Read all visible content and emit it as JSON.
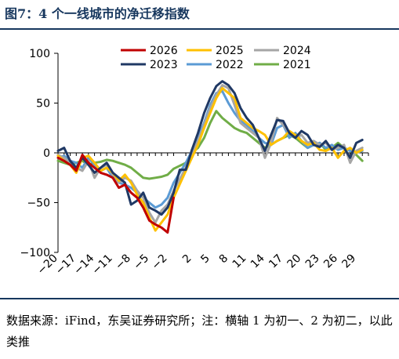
{
  "figure": {
    "title": "图7：4 个一线城市的净迁移指数",
    "source": "数据来源：iFind，东吴证券研究所；注：横轴 1 为初一、2 为初二，以此类推"
  },
  "chart_data": {
    "type": "line",
    "ylim": [
      -100,
      100
    ],
    "yticks": [
      100,
      50,
      0,
      -50,
      -100
    ],
    "xlim": [
      -20,
      31
    ],
    "xticks": [
      -20,
      -17,
      -14,
      -11,
      -8,
      -5,
      -2,
      2,
      5,
      8,
      11,
      14,
      17,
      20,
      23,
      26,
      29
    ],
    "grid": false,
    "legend_position": "top-right",
    "series": [
      {
        "name": "2026",
        "color": "#c00000",
        "x": [
          -20,
          -19,
          -18,
          -17,
          -16,
          -15,
          -14,
          -13,
          -12,
          -11,
          -10,
          -9,
          -8,
          -7,
          -6,
          -5,
          -4,
          -3,
          -2,
          -1
        ],
        "y": [
          -5,
          -8,
          -12,
          -18,
          -2,
          -10,
          -15,
          -20,
          -22,
          -25,
          -35,
          -32,
          -40,
          -45,
          -55,
          -68,
          -72,
          -75,
          -80,
          -45
        ]
      },
      {
        "name": "2025",
        "color": "#ffc000",
        "x": [
          -20,
          -19,
          -18,
          -17,
          -16,
          -15,
          -14,
          -13,
          -12,
          -11,
          -10,
          -9,
          -8,
          -7,
          -6,
          -5,
          -4,
          -3,
          -2,
          -1,
          1,
          2,
          3,
          4,
          5,
          6,
          7,
          8,
          9,
          10,
          11,
          12,
          13,
          14,
          15,
          16,
          17,
          18,
          19,
          20,
          21,
          22,
          23,
          24,
          25,
          26,
          27,
          28,
          29,
          30
        ],
        "y": [
          -3,
          -8,
          -12,
          -20,
          -5,
          -3,
          -10,
          -18,
          -15,
          -20,
          -28,
          -22,
          -30,
          -42,
          -50,
          -65,
          -78,
          -70,
          -62,
          -45,
          -18,
          -5,
          8,
          25,
          40,
          55,
          65,
          60,
          55,
          35,
          30,
          25,
          22,
          18,
          8,
          12,
          15,
          22,
          18,
          12,
          8,
          10,
          3,
          2,
          5,
          -5,
          2,
          5,
          0,
          3
        ]
      },
      {
        "name": "2024",
        "color": "#a6a6a6",
        "x": [
          -20,
          -19,
          -18,
          -17,
          -16,
          -15,
          -14,
          -13,
          -12,
          -11,
          -10,
          -9,
          -8,
          -7,
          -6,
          -5,
          -4,
          -3,
          -2,
          -1,
          1,
          2,
          3,
          4,
          5,
          6,
          7,
          8,
          9,
          10,
          11,
          12,
          13,
          14,
          15,
          16,
          17,
          18,
          19,
          20,
          21,
          22,
          23,
          24,
          25,
          26,
          27,
          28,
          29,
          30
        ],
        "y": [
          -2,
          -5,
          -10,
          -15,
          -18,
          -8,
          -25,
          -15,
          -12,
          -22,
          -30,
          -25,
          -28,
          -38,
          -45,
          -60,
          -70,
          -58,
          -52,
          -38,
          -15,
          0,
          12,
          28,
          45,
          58,
          68,
          65,
          48,
          30,
          25,
          20,
          15,
          -5,
          10,
          35,
          28,
          20,
          15,
          18,
          10,
          12,
          8,
          10,
          3,
          5,
          8,
          -10,
          2,
          5
        ]
      },
      {
        "name": "2023",
        "color": "#1f3864",
        "x": [
          -20,
          -19,
          -18,
          -17,
          -16,
          -15,
          -14,
          -13,
          -12,
          -11,
          -10,
          -9,
          -8,
          -7,
          -6,
          -5,
          -4,
          -3,
          -2,
          -1,
          0,
          1,
          2,
          3,
          4,
          5,
          6,
          7,
          8,
          9,
          10,
          11,
          12,
          13,
          14,
          15,
          16,
          17,
          18,
          19,
          20,
          21,
          22,
          23,
          24,
          25,
          26,
          27,
          28,
          29,
          30
        ],
        "y": [
          2,
          5,
          -8,
          -15,
          -5,
          -12,
          -20,
          -15,
          -10,
          -20,
          -25,
          -30,
          -52,
          -48,
          -40,
          -55,
          -58,
          -62,
          -55,
          -40,
          -17,
          -17,
          3,
          20,
          40,
          55,
          67,
          72,
          68,
          60,
          45,
          35,
          28,
          15,
          2,
          18,
          33,
          32,
          20,
          15,
          22,
          18,
          8,
          6,
          12,
          3,
          8,
          5,
          -5,
          10,
          13
        ]
      },
      {
        "name": "2022",
        "color": "#5b9bd5",
        "x": [
          -20,
          -19,
          -18,
          -17,
          -16,
          -15,
          -14,
          -13,
          -12,
          -11,
          -10,
          -9,
          -8,
          -7,
          -6,
          -5,
          -4,
          -3,
          -2,
          -1,
          1,
          2,
          3,
          4,
          5,
          6,
          7,
          8,
          9,
          10,
          11,
          12,
          13,
          14,
          15,
          16,
          17,
          18,
          19,
          20,
          21,
          22,
          23,
          24,
          25,
          26,
          27,
          28,
          29,
          30
        ],
        "y": [
          -5,
          -3,
          -8,
          -10,
          -15,
          -5,
          -12,
          -18,
          -15,
          -25,
          -30,
          -32,
          -35,
          -40,
          -45,
          -50,
          -55,
          -52,
          -45,
          -30,
          -10,
          2,
          15,
          30,
          48,
          60,
          62,
          50,
          40,
          32,
          28,
          22,
          15,
          10,
          8,
          25,
          28,
          15,
          20,
          12,
          5,
          8,
          10,
          5,
          8,
          3,
          5,
          2,
          0,
          2
        ]
      },
      {
        "name": "2021",
        "color": "#70ad47",
        "x": [
          -20,
          -19,
          -18,
          -17,
          -16,
          -15,
          -14,
          -13,
          -12,
          -11,
          -10,
          -9,
          -8,
          -7,
          -6,
          -5,
          -4,
          -3,
          -2,
          -1,
          1,
          2,
          3,
          4,
          5,
          6,
          7,
          8,
          9,
          10,
          11,
          12,
          13,
          14,
          15,
          16,
          17,
          18,
          19,
          20,
          21,
          22,
          23,
          24,
          25,
          26,
          27,
          28,
          29,
          30
        ],
        "y": [
          -8,
          -10,
          -12,
          -10,
          -8,
          -12,
          -10,
          -9,
          -7,
          -8,
          -10,
          -12,
          -15,
          -20,
          -25,
          -26,
          -25,
          -24,
          -22,
          -16,
          -10,
          0,
          5,
          15,
          30,
          42,
          35,
          30,
          25,
          22,
          20,
          15,
          10,
          5,
          8,
          12,
          15,
          18,
          15,
          10,
          5,
          8,
          10,
          3,
          5,
          10,
          5,
          2,
          -2,
          -8
        ]
      }
    ]
  }
}
